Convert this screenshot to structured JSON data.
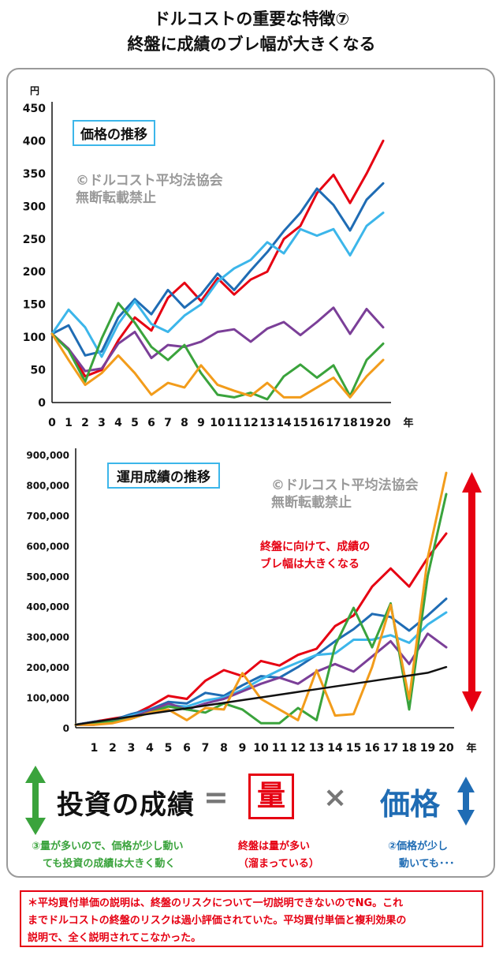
{
  "header": {
    "title_line1": "ドルコストの重要な特徴⑦",
    "title_line2": "終盤に成績のブレ幅が大きくなる"
  },
  "watermark": {
    "line1": "©ドルコスト平均法協会",
    "line2": "無断転載禁止"
  },
  "colors": {
    "red": "#e60012",
    "blue": "#1f6cb4",
    "cyan": "#3cb6ea",
    "purple": "#7b3f98",
    "green": "#3aa33c",
    "orange": "#f29c1b",
    "black": "#111111"
  },
  "chart_data": [
    {
      "type": "line",
      "title": "価格の推移",
      "unit_label": "円",
      "xlabel": "年",
      "ylim": [
        0,
        450
      ],
      "yticks": [
        0,
        50,
        100,
        150,
        200,
        250,
        300,
        350,
        400,
        450
      ],
      "x": [
        0,
        1,
        2,
        3,
        4,
        5,
        6,
        7,
        8,
        9,
        10,
        11,
        12,
        13,
        14,
        15,
        16,
        17,
        18,
        19,
        20
      ],
      "series": [
        {
          "color": "red",
          "values": [
            105,
            82,
            40,
            50,
            95,
            130,
            110,
            160,
            183,
            155,
            190,
            165,
            188,
            200,
            250,
            270,
            320,
            348,
            305,
            350,
            400
          ]
        },
        {
          "color": "blue",
          "values": [
            105,
            118,
            72,
            78,
            130,
            158,
            135,
            172,
            145,
            165,
            197,
            172,
            202,
            230,
            262,
            290,
            327,
            302,
            263,
            310,
            335
          ]
        },
        {
          "color": "cyan",
          "values": [
            105,
            142,
            115,
            70,
            120,
            155,
            120,
            108,
            133,
            150,
            185,
            205,
            218,
            245,
            228,
            265,
            255,
            265,
            225,
            270,
            290
          ]
        },
        {
          "color": "purple",
          "values": [
            105,
            82,
            48,
            52,
            90,
            108,
            68,
            88,
            85,
            93,
            108,
            112,
            93,
            113,
            123,
            103,
            123,
            145,
            105,
            143,
            115
          ]
        },
        {
          "color": "green",
          "values": [
            105,
            80,
            32,
            98,
            152,
            122,
            85,
            65,
            88,
            45,
            12,
            8,
            15,
            5,
            40,
            58,
            38,
            57,
            10,
            65,
            90
          ]
        },
        {
          "color": "orange",
          "values": [
            105,
            65,
            27,
            45,
            72,
            45,
            12,
            30,
            23,
            57,
            27,
            18,
            10,
            30,
            8,
            8,
            23,
            38,
            8,
            40,
            65
          ]
        }
      ]
    },
    {
      "type": "line",
      "title": "運用成績の推移",
      "xlabel": "年",
      "ylim": [
        0,
        900000
      ],
      "yticks": [
        0,
        100000,
        200000,
        300000,
        400000,
        500000,
        600000,
        700000,
        800000,
        900000
      ],
      "ytick_labels": [
        "0",
        "100,000",
        "200,000",
        "300,000",
        "400,000",
        "500,000",
        "600,000",
        "700,000",
        "800,000",
        "900,000"
      ],
      "x": [
        0,
        1,
        2,
        3,
        4,
        5,
        6,
        7,
        8,
        9,
        10,
        11,
        12,
        13,
        14,
        15,
        16,
        17,
        18,
        19,
        20
      ],
      "series": [
        {
          "color": "red",
          "values": [
            10000,
            20000,
            30000,
            40000,
            70000,
            105000,
            95000,
            155000,
            190000,
            170000,
            220000,
            205000,
            240000,
            260000,
            335000,
            370000,
            465000,
            525000,
            465000,
            560000,
            640000
          ]
        },
        {
          "color": "blue",
          "values": [
            10000,
            20000,
            25000,
            45000,
            60000,
            85000,
            80000,
            115000,
            105000,
            140000,
            170000,
            165000,
            200000,
            240000,
            285000,
            325000,
            375000,
            365000,
            320000,
            370000,
            425000
          ]
        },
        {
          "color": "cyan",
          "values": [
            10000,
            15000,
            25000,
            40000,
            55000,
            75000,
            70000,
            90000,
            100000,
            125000,
            160000,
            190000,
            215000,
            240000,
            245000,
            290000,
            290000,
            305000,
            280000,
            340000,
            380000
          ]
        },
        {
          "color": "purple",
          "values": [
            10000,
            10000,
            20000,
            35000,
            55000,
            80000,
            60000,
            80000,
            95000,
            120000,
            145000,
            165000,
            145000,
            185000,
            210000,
            185000,
            235000,
            285000,
            210000,
            310000,
            265000
          ]
        },
        {
          "color": "green",
          "values": [
            10000,
            15000,
            20000,
            30000,
            50000,
            70000,
            60000,
            50000,
            80000,
            60000,
            15000,
            15000,
            65000,
            25000,
            270000,
            395000,
            265000,
            410000,
            60000,
            500000,
            770000
          ]
        },
        {
          "color": "orange",
          "values": [
            10000,
            10000,
            15000,
            30000,
            50000,
            60000,
            25000,
            65000,
            60000,
            180000,
            95000,
            60000,
            25000,
            190000,
            40000,
            45000,
            200000,
            405000,
            95000,
            560000,
            840000
          ]
        },
        {
          "color": "black",
          "values": [
            10000,
            19000,
            28000,
            37000,
            46000,
            55000,
            64000,
            73000,
            82000,
            91000,
            100000,
            109000,
            118000,
            127000,
            136000,
            145000,
            154000,
            163000,
            172000,
            181000,
            200000
          ]
        }
      ],
      "annotation": {
        "line1": "終盤に向けて、成績の",
        "line2": "ブレ幅は大きくなる"
      }
    }
  ],
  "formula": {
    "left": "投資の成績",
    "equals": "=",
    "box": "量",
    "times": "×",
    "right": "価格"
  },
  "captions": {
    "green_line1": "③量が多いので、価格が少し動い",
    "green_line2": "ても投資の成績は大きく動く",
    "red_line1": "終盤は量が多い",
    "red_line2": "（溜まっている）",
    "blue_line1": "②価格が少し",
    "blue_line2": "動いても･･･"
  },
  "note": {
    "line1": "＊平均買付単価の説明は、終盤のリスクについて一切説明できないのでNG。これ",
    "line2": "までドルコストの終盤のリスクは過小評価されていた。平均買付単価と複利効果の",
    "line3": "説明で、全く説明されてこなかった。"
  }
}
